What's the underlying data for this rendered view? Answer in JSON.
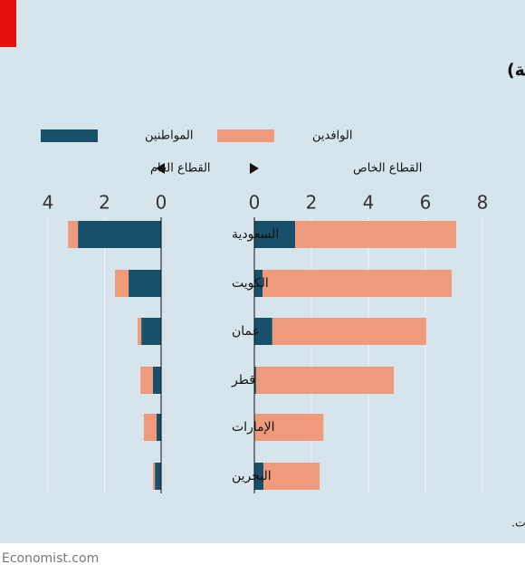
{
  "chart_data": {
    "type": "bar",
    "title": "توظيف المواطنين والوافدين حسب القطاع (بيانات حديثة)",
    "categories": [
      "السعودية",
      "الكويت",
      "عمان",
      "قطر",
      "الإمارات",
      "البحرين"
    ],
    "series": [
      {
        "name": "المواطنين",
        "color": "#17506a"
      },
      {
        "name": "الوافدين",
        "color": "#ef9a7b"
      }
    ],
    "panels": [
      {
        "label": "القطاع العام",
        "direction": "left",
        "xlim": [
          0,
          4
        ],
        "xticks": [
          0,
          2,
          4
        ],
        "values": [
          [
            2.94,
            1.15,
            0.7,
            0.29,
            0.16,
            0.22
          ],
          [
            0.35,
            0.48,
            0.13,
            0.44,
            0.45,
            0.07
          ]
        ]
      },
      {
        "label": "القطاع الخاص",
        "direction": "right",
        "xlim": [
          0,
          8
        ],
        "xticks": [
          0,
          2,
          4,
          6,
          8
        ],
        "values": [
          [
            1.43,
            0.29,
            0.63,
            0.06,
            0.02,
            0.32
          ],
          [
            5.65,
            6.63,
            5.4,
            4.83,
            2.4,
            1.97
          ]
        ]
      }
    ],
    "source": "المصدر: إحصاءات قومية، صندوق النقد الدولي، تقرير آفاق الاقتصاد العالمي، هافر للتحليلات.",
    "grid": true
  },
  "footer": "Economist.com"
}
